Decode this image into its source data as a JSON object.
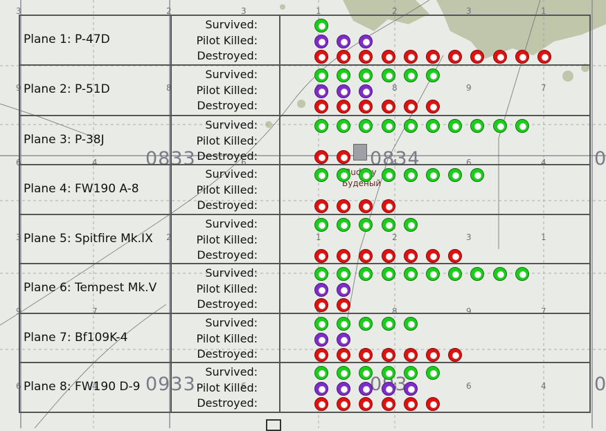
{
  "stat_labels": {
    "survived": "Survived:",
    "pilot_killed": "Pilot Killed:",
    "destroyed": "Destroyed:"
  },
  "colors": {
    "survived": "#1ccd1c",
    "pilot_killed": "#7d2ec7",
    "destroyed": "#df1111"
  },
  "icon_name": "plane-emblem-icon",
  "planes": [
    {
      "name": "Plane 1: P-47D",
      "survived": 1,
      "pilot_killed": 3,
      "destroyed": 11
    },
    {
      "name": "Plane 2: P-51D",
      "survived": 6,
      "pilot_killed": 3,
      "destroyed": 6
    },
    {
      "name": "Plane 3: P-38J",
      "survived": 10,
      "pilot_killed": 0,
      "destroyed": 2
    },
    {
      "name": "Plane 4: FW190 A-8",
      "survived": 8,
      "pilot_killed": 0,
      "destroyed": 4
    },
    {
      "name": "Plane 5: Spitfire Mk.IX",
      "survived": 5,
      "pilot_killed": 0,
      "destroyed": 7
    },
    {
      "name": "Plane 6: Tempest Mk.V",
      "survived": 10,
      "pilot_killed": 2,
      "destroyed": 2
    },
    {
      "name": "Plane 7: Bf109K-4",
      "survived": 5,
      "pilot_killed": 2,
      "destroyed": 7
    },
    {
      "name": "Plane 8: FW190 D-9",
      "survived": 6,
      "pilot_killed": 5,
      "destroyed": 6
    }
  ],
  "map": {
    "grid_numbers_top": [
      "3",
      "2",
      "3",
      "1",
      "2",
      "3",
      "1"
    ],
    "grid_numbers_mid": [
      "9",
      "8",
      "9",
      "8",
      "9",
      "7"
    ],
    "grid_numbers_row3": [
      "6",
      "4",
      "6",
      "4",
      "6",
      "4"
    ],
    "grid_numbers_row4": [
      "3",
      "2",
      "1",
      "2",
      "3",
      "1"
    ],
    "grid_numbers_row5": [
      "9",
      "7",
      "9",
      "8",
      "9",
      "7"
    ],
    "grid_numbers_row6": [
      "6",
      "4",
      "6",
      "4",
      "6",
      "4"
    ],
    "square_labels": [
      "0833",
      "0834",
      "0933",
      "093"
    ],
    "edge_label": "0",
    "town_latin": "Budeny",
    "town_cyrillic": "Буденый"
  }
}
